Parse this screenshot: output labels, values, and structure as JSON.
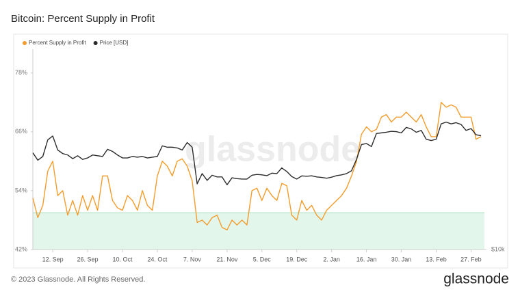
{
  "chart_data": {
    "type": "line",
    "title": "Bitcoin: Percent Supply in Profit",
    "watermark": "glassnode",
    "footer": "© 2023 Glassnode. All Rights Reserved.",
    "logo": "glassnode",
    "x": [
      "4. Sep",
      "6. Sep",
      "8. Sep",
      "10. Sep",
      "12. Sep",
      "14. Sep",
      "16. Sep",
      "18. Sep",
      "20. Sep",
      "22. Sep",
      "24. Sep",
      "26. Sep",
      "28. Sep",
      "30. Sep",
      "2. Oct",
      "4. Oct",
      "6. Oct",
      "8. Oct",
      "10. Oct",
      "12. Oct",
      "14. Oct",
      "16. Oct",
      "18. Oct",
      "20. Oct",
      "22. Oct",
      "24. Oct",
      "26. Oct",
      "28. Oct",
      "30. Oct",
      "1. Nov",
      "3. Nov",
      "5. Nov",
      "7. Nov",
      "9. Nov",
      "11. Nov",
      "13. Nov",
      "15. Nov",
      "17. Nov",
      "19. Nov",
      "21. Nov",
      "23. Nov",
      "25. Nov",
      "27. Nov",
      "29. Nov",
      "1. Dec",
      "3. Dec",
      "5. Dec",
      "7. Dec",
      "9. Dec",
      "11. Dec",
      "13. Dec",
      "15. Dec",
      "17. Dec",
      "19. Dec",
      "21. Dec",
      "23. Dec",
      "25. Dec",
      "27. Dec",
      "29. Dec",
      "31. Dec",
      "2. Jan",
      "4. Jan",
      "6. Jan",
      "8. Jan",
      "10. Jan",
      "12. Jan",
      "14. Jan",
      "16. Jan",
      "18. Jan",
      "20. Jan",
      "22. Jan",
      "24. Jan",
      "26. Jan",
      "28. Jan",
      "30. Jan",
      "1. Feb",
      "3. Feb",
      "5. Feb",
      "7. Feb",
      "9. Feb",
      "11. Feb",
      "13. Feb",
      "15. Feb",
      "17. Feb",
      "19. Feb",
      "21. Feb",
      "23. Feb",
      "25. Feb",
      "27. Feb",
      "1. Mar",
      "3. Mar"
    ],
    "xticks": [
      "12. Sep",
      "26. Sep",
      "10. Oct",
      "24. Oct",
      "7. Nov",
      "21. Nov",
      "5. Dec",
      "19. Dec",
      "2. Jan",
      "16. Jan",
      "30. Jan",
      "13. Feb",
      "27. Feb"
    ],
    "series": [
      {
        "name": "Percent Supply in Profit",
        "color": "#f39c2b",
        "values": [
          52.5,
          48.5,
          51,
          58,
          60,
          53,
          54,
          49,
          52,
          49,
          53,
          50,
          53,
          50,
          57,
          57,
          52,
          50.5,
          50,
          53,
          52,
          50,
          54,
          51,
          50,
          57,
          60,
          59,
          57,
          60,
          60.5,
          59,
          56,
          47.5,
          48,
          47,
          48.5,
          49,
          46.5,
          46,
          48,
          47,
          48,
          47,
          54,
          54.5,
          52,
          54.5,
          53,
          52,
          55.5,
          55,
          49,
          48,
          52,
          50,
          51,
          49,
          48,
          50,
          51,
          52,
          53,
          54.5,
          57,
          60,
          65.5,
          67,
          66,
          66.5,
          69,
          69.5,
          68,
          69,
          69,
          70,
          69,
          68,
          69.5,
          67,
          65,
          65,
          72,
          71,
          71.5,
          71,
          69,
          69,
          69,
          64.5,
          65
        ]
      },
      {
        "name": "Price [USD]",
        "color": "#2b2b2b",
        "axis": "y2",
        "values": [
          19800,
          18800,
          19300,
          21700,
          22300,
          20200,
          19700,
          19500,
          19000,
          19400,
          18900,
          19100,
          19500,
          19400,
          19300,
          20300,
          20000,
          19500,
          19100,
          19100,
          19300,
          19200,
          19300,
          19100,
          19200,
          19300,
          20800,
          20600,
          20600,
          20500,
          20200,
          21300,
          20600,
          15900,
          17100,
          16300,
          16900,
          16700,
          16700,
          15800,
          16600,
          16500,
          16450,
          16450,
          16900,
          17000,
          16950,
          16850,
          17150,
          17100,
          17800,
          17350,
          16750,
          16450,
          16820,
          16780,
          16830,
          16700,
          16640,
          16550,
          16670,
          16850,
          16950,
          17100,
          17450,
          18900,
          21000,
          21150,
          20700,
          22700,
          22800,
          22900,
          23050,
          23000,
          22800,
          23700,
          23450,
          22900,
          23200,
          21800,
          21600,
          21800,
          24300,
          24600,
          24300,
          24500,
          24200,
          23200,
          23500,
          22500,
          22350
        ]
      }
    ],
    "ylim": [
      42,
      82
    ],
    "yticks": [
      {
        "value": 42,
        "label": "42%"
      },
      {
        "value": 54,
        "label": "54%"
      },
      {
        "value": 66,
        "label": "66%"
      },
      {
        "value": 78,
        "label": "78%"
      }
    ],
    "y2lim": [
      10000,
      40000
    ],
    "y2scale": "log",
    "y2ticks": [
      {
        "value": 10000,
        "label": "$10k"
      }
    ],
    "shaded_band": {
      "from": 42,
      "to": 49.5,
      "color": "#e3f6ec",
      "edge": "#a8dcbf"
    },
    "grid": false,
    "legend": "top-left"
  }
}
